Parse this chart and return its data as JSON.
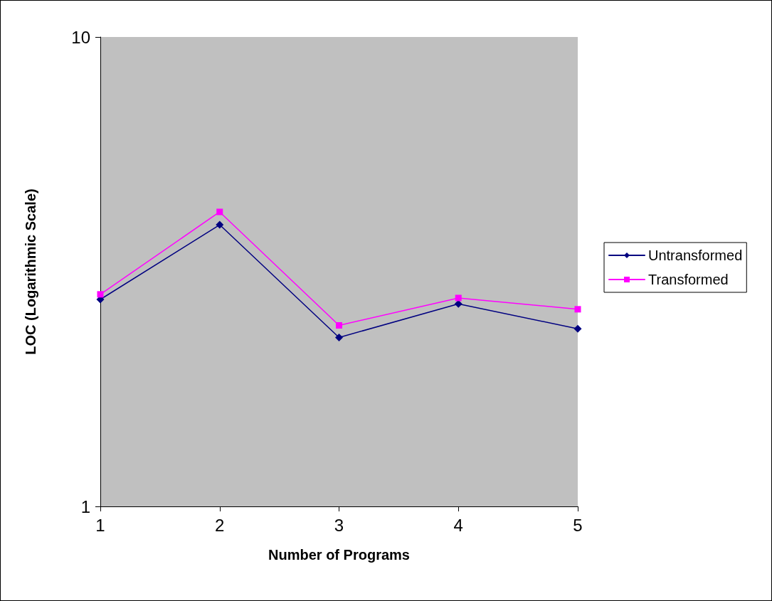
{
  "chart_data": {
    "type": "line",
    "xlabel": "Number of Programs",
    "ylabel": "LOC (Logarithmic Scale)",
    "categories": [
      "1",
      "2",
      "3",
      "4",
      "5"
    ],
    "series": [
      {
        "name": "Untransformed",
        "color": "#000080",
        "marker": "diamond",
        "values": [
          2.76,
          3.98,
          2.29,
          2.7,
          2.39
        ]
      },
      {
        "name": "Transformed",
        "color": "#ff00ff",
        "marker": "square",
        "values": [
          2.83,
          4.24,
          2.43,
          2.78,
          2.63
        ]
      }
    ],
    "log": "y",
    "ylim": [
      1,
      10
    ],
    "yticks": [
      1,
      10
    ],
    "grid": false,
    "legend": "right",
    "line_style": "solid"
  }
}
